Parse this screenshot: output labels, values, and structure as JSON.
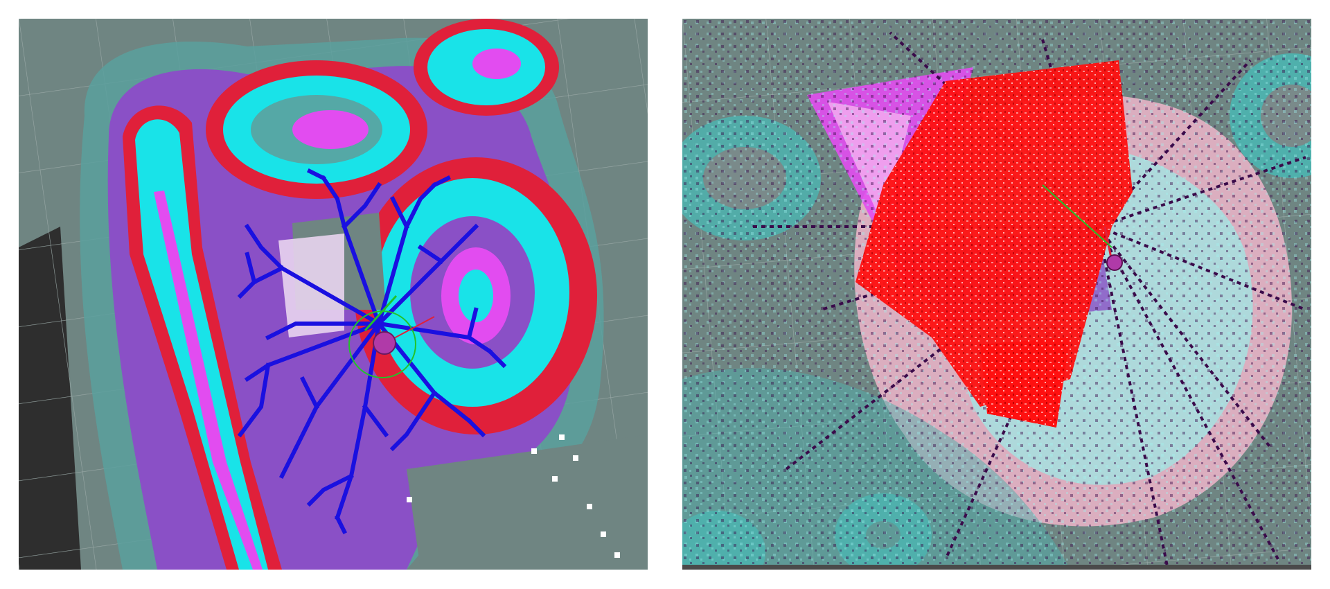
{
  "figure": {
    "panels": [
      {
        "id": "left",
        "content": "costmap-tree-exploration",
        "tree_color": "#1a10e0"
      },
      {
        "id": "right",
        "content": "costmap-dense-random-tree",
        "tree_color": "#ff1010"
      }
    ],
    "palette": {
      "background": "#6f8582",
      "teal": "#55a8a6",
      "cyan": "#19e3e8",
      "magenta": "#e24cf0",
      "violet": "#8a4fc4",
      "red": "#e0203a",
      "lavender": "#e8c4ea",
      "dark_points": "#3a0a4a",
      "robot": "#b03aa8",
      "axis_green": "#22c32a"
    }
  }
}
